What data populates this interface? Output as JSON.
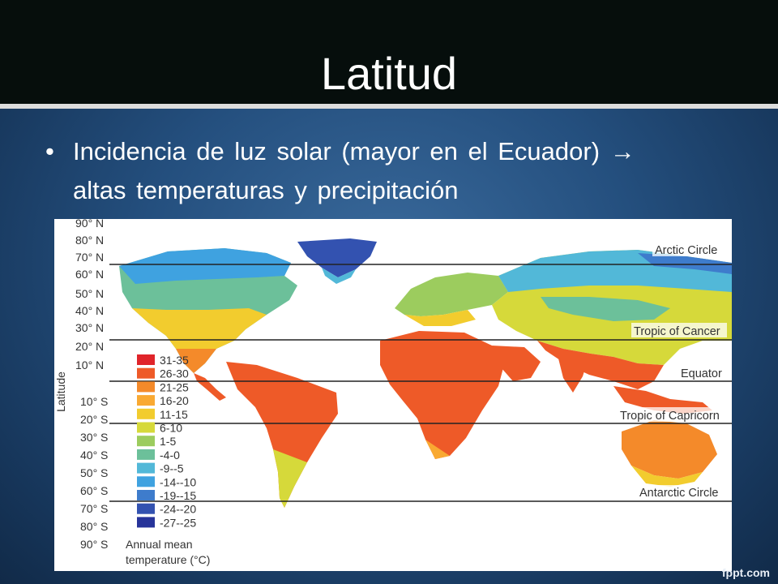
{
  "slide": {
    "title": "Latitud",
    "bullet_symbol": "•",
    "bullet_line1": "Incidencia de luz solar (mayor en el Ecuador) →",
    "bullet_line2": "altas temperaturas y  precipitación",
    "watermark": "fppt.com"
  },
  "map": {
    "y_axis_title": "Latitude",
    "latitudes": [
      "90° N",
      "80° N",
      "70° N",
      "60° N",
      "50° N",
      "40° N",
      "30° N",
      "20° N",
      "10° N",
      "10° S",
      "20° S",
      "30° S",
      "40° S",
      "50° S",
      "60° S",
      "70° S",
      "80° S",
      "90° S"
    ],
    "reference_lines": [
      "Arctic Circle",
      "Tropic of Cancer",
      "Equator",
      "Tropic of Capricorn",
      "Antarctic Circle"
    ],
    "legend": {
      "title_line1": "Annual mean",
      "title_line2": "temperature (°C)",
      "items": [
        {
          "label": "31-35",
          "color": "#e0242a"
        },
        {
          "label": "26-30",
          "color": "#ee5a28"
        },
        {
          "label": "21-25",
          "color": "#f48a2a"
        },
        {
          "label": "16-20",
          "color": "#f9a932"
        },
        {
          "label": "11-15",
          "color": "#f2cc2e"
        },
        {
          "label": "6-10",
          "color": "#d6d93a"
        },
        {
          "label": "1-5",
          "color": "#9ccc5e"
        },
        {
          "label": "-4-0",
          "color": "#6cc09a"
        },
        {
          "label": "-9--5",
          "color": "#52b8d8"
        },
        {
          "label": "-14--10",
          "color": "#3fa2e0"
        },
        {
          "label": "-19--15",
          "color": "#3e7ccc"
        },
        {
          "label": "-24--20",
          "color": "#3352b0"
        },
        {
          "label": "-27--25",
          "color": "#27349a"
        }
      ]
    }
  }
}
